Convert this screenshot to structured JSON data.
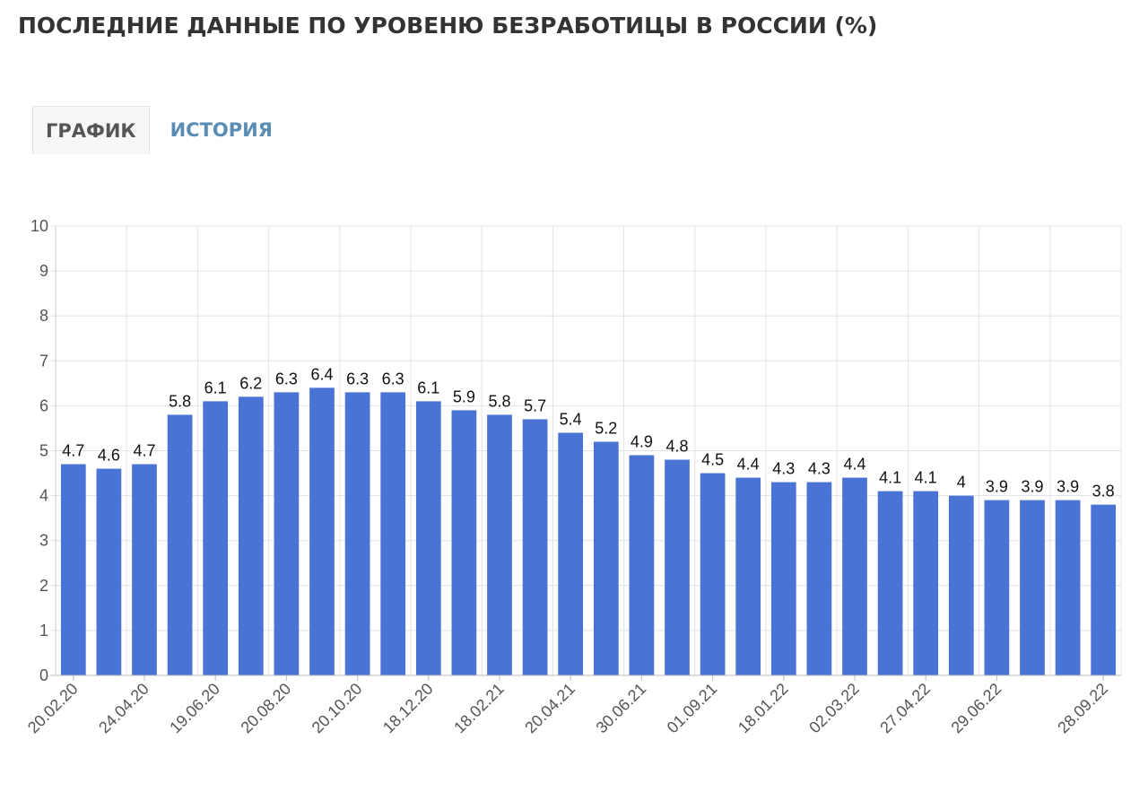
{
  "page": {
    "title": "ПОСЛЕДНИЕ ДАННЫЕ ПО УРОВЕНЮ БЕЗРАБОТИЦЫ В РОССИИ (%)"
  },
  "tabs": [
    {
      "label": "ГРАФИК",
      "active": true
    },
    {
      "label": "ИСТОРИЯ",
      "active": false
    }
  ],
  "colors": {
    "bar": "#4a73d6",
    "tab_active_text": "#555555",
    "tab_inactive_text": "#5a8db3"
  },
  "chart_data": {
    "type": "bar",
    "title": "",
    "xlabel": "",
    "ylabel": "",
    "ylim": [
      0,
      10
    ],
    "y_ticks": [
      0,
      1,
      2,
      3,
      4,
      5,
      6,
      7,
      8,
      9,
      10
    ],
    "grid": true,
    "values": [
      4.7,
      4.6,
      4.7,
      5.8,
      6.1,
      6.2,
      6.3,
      6.4,
      6.3,
      6.3,
      6.1,
      5.9,
      5.8,
      5.7,
      5.4,
      5.2,
      4.9,
      4.8,
      4.5,
      4.4,
      4.3,
      4.3,
      4.4,
      4.1,
      4.1,
      4,
      3.9,
      3.9,
      3.9,
      3.8
    ],
    "value_labels": [
      "4.7",
      "4.6",
      "4.7",
      "5.8",
      "6.1",
      "6.2",
      "6.3",
      "6.4",
      "6.3",
      "6.3",
      "6.1",
      "5.9",
      "5.8",
      "5.7",
      "5.4",
      "5.2",
      "4.9",
      "4.8",
      "4.5",
      "4.4",
      "4.3",
      "4.3",
      "4.4",
      "4.1",
      "4.1",
      "4",
      "3.9",
      "3.9",
      "3.9",
      "3.8"
    ],
    "x_tick_labels": [
      {
        "label": "20.02.20",
        "bar_index": 0
      },
      {
        "label": "24.04.20",
        "bar_index": 2
      },
      {
        "label": "19.06.20",
        "bar_index": 4
      },
      {
        "label": "20.08.20",
        "bar_index": 6
      },
      {
        "label": "20.10.20",
        "bar_index": 8
      },
      {
        "label": "18.12.20",
        "bar_index": 10
      },
      {
        "label": "18.02.21",
        "bar_index": 12
      },
      {
        "label": "20.04.21",
        "bar_index": 14
      },
      {
        "label": "30.06.21",
        "bar_index": 16
      },
      {
        "label": "01.09.21",
        "bar_index": 18
      },
      {
        "label": "18.01.22",
        "bar_index": 20
      },
      {
        "label": "02.03.22",
        "bar_index": 22
      },
      {
        "label": "27.04.22",
        "bar_index": 24
      },
      {
        "label": "29.06.22",
        "bar_index": 26
      },
      {
        "label": "28.09.22",
        "bar_index": 29
      }
    ]
  }
}
